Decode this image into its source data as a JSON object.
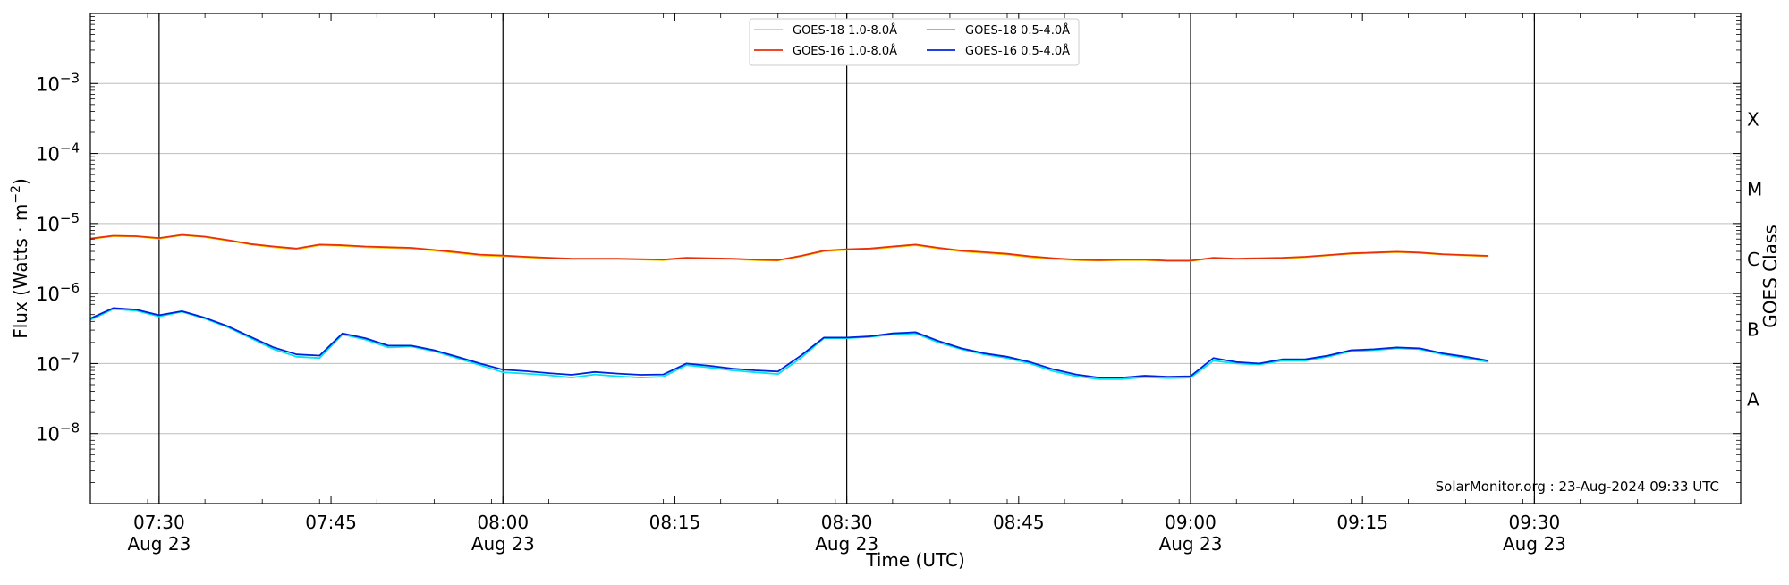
{
  "chart_data": {
    "type": "line",
    "xlabel": "Time (UTC)",
    "ylabel": "Flux (Watts · m",
    "ylabel_exponent": "−2",
    "ylabel_close": ")",
    "right_axis_label": "GOES Class",
    "y_scale": "log",
    "ylim": [
      1e-09,
      0.01
    ],
    "xlim": [
      "07:24",
      "09:48"
    ],
    "grid": "horizontal",
    "legend_position": "top-center",
    "y_ticks": [
      {
        "value": 1e-08,
        "base": "10",
        "exp": "−8"
      },
      {
        "value": 1e-07,
        "base": "10",
        "exp": "−7"
      },
      {
        "value": 1e-06,
        "base": "10",
        "exp": "−6"
      },
      {
        "value": 1e-05,
        "base": "10",
        "exp": "−5"
      },
      {
        "value": 0.0001,
        "base": "10",
        "exp": "−4"
      },
      {
        "value": 0.001,
        "base": "10",
        "exp": "−3"
      }
    ],
    "x_ticks": [
      {
        "time": "07:30",
        "label": "07:30",
        "sub": "Aug 23"
      },
      {
        "time": "07:45",
        "label": "07:45",
        "sub": ""
      },
      {
        "time": "08:00",
        "label": "08:00",
        "sub": "Aug 23"
      },
      {
        "time": "08:15",
        "label": "08:15",
        "sub": ""
      },
      {
        "time": "08:30",
        "label": "08:30",
        "sub": "Aug 23"
      },
      {
        "time": "08:45",
        "label": "08:45",
        "sub": ""
      },
      {
        "time": "09:00",
        "label": "09:00",
        "sub": "Aug 23"
      },
      {
        "time": "09:15",
        "label": "09:15",
        "sub": ""
      },
      {
        "time": "09:30",
        "label": "09:30",
        "sub": "Aug 23"
      }
    ],
    "vertical_markers": [
      "07:30",
      "08:00",
      "08:30",
      "09:00",
      "09:30"
    ],
    "goes_classes": [
      {
        "label": "A",
        "value": 3.16e-08
      },
      {
        "label": "B",
        "value": 3.16e-07
      },
      {
        "label": "C",
        "value": 3.16e-06
      },
      {
        "label": "M",
        "value": 3.16e-05
      },
      {
        "label": "X",
        "value": 0.000316
      }
    ],
    "annotation": "SolarMonitor.org : 23-Aug-2024 09:33 UTC",
    "legend": [
      {
        "name": "GOES-18 1.0-8.0Å",
        "color": "#ffd700"
      },
      {
        "name": "GOES-16 1.0-8.0Å",
        "color": "#e8300a"
      },
      {
        "name": "GOES-18 0.5-4.0Å",
        "color": "#00e5ee"
      },
      {
        "name": "GOES-16 0.5-4.0Å",
        "color": "#0022dd"
      }
    ],
    "series": [
      {
        "name": "GOES-18 1.0-8.0Å",
        "color": "#ffd700",
        "x": [
          "07:24",
          "07:26",
          "07:28",
          "07:30",
          "07:32",
          "07:34",
          "07:36",
          "07:38",
          "07:40",
          "07:42",
          "07:44",
          "07:46",
          "07:48",
          "07:50",
          "07:52",
          "07:54",
          "07:56",
          "07:58",
          "08:00",
          "08:02",
          "08:04",
          "08:06",
          "08:08",
          "08:10",
          "08:12",
          "08:14",
          "08:16",
          "08:18",
          "08:20",
          "08:22",
          "08:24",
          "08:26",
          "08:28",
          "08:30",
          "08:32",
          "08:34",
          "08:36",
          "08:38",
          "08:40",
          "08:42",
          "08:44",
          "08:46",
          "08:48",
          "08:50",
          "08:52",
          "08:54",
          "08:56",
          "08:58",
          "09:00",
          "09:02",
          "09:04",
          "09:06",
          "09:08",
          "09:10",
          "09:12",
          "09:14",
          "09:16",
          "09:18",
          "09:20",
          "09:22",
          "09:24",
          "09:26"
        ],
        "y": [
          6e-06,
          6.6e-06,
          6.5e-06,
          6.1e-06,
          6.8e-06,
          6.4e-06,
          5.7e-06,
          5e-06,
          4.6e-06,
          4.3e-06,
          4.9e-06,
          4.8e-06,
          4.6e-06,
          4.5e-06,
          4.4e-06,
          4.1e-06,
          3.8e-06,
          3.5e-06,
          3.4e-06,
          3.3e-06,
          3.2e-06,
          3.1e-06,
          3.1e-06,
          3.1e-06,
          3.05e-06,
          3e-06,
          3.2e-06,
          3.15e-06,
          3.1e-06,
          3e-06,
          2.95e-06,
          3.4e-06,
          4e-06,
          4.2e-06,
          4.3e-06,
          4.6e-06,
          4.9e-06,
          4.4e-06,
          4e-06,
          3.8e-06,
          3.6e-06,
          3.3e-06,
          3.1e-06,
          3e-06,
          2.95e-06,
          3e-06,
          3e-06,
          2.9e-06,
          2.9e-06,
          3.2e-06,
          3.1e-06,
          3.15e-06,
          3.2e-06,
          3.3e-06,
          3.5e-06,
          3.7e-06,
          3.8e-06,
          3.9e-06,
          3.8e-06,
          3.6e-06,
          3.5e-06,
          3.4e-06
        ]
      },
      {
        "name": "GOES-16 1.0-8.0Å",
        "color": "#e8300a",
        "x": [
          "07:24",
          "07:26",
          "07:28",
          "07:30",
          "07:32",
          "07:34",
          "07:36",
          "07:38",
          "07:40",
          "07:42",
          "07:44",
          "07:46",
          "07:48",
          "07:50",
          "07:52",
          "07:54",
          "07:56",
          "07:58",
          "08:00",
          "08:02",
          "08:04",
          "08:06",
          "08:08",
          "08:10",
          "08:12",
          "08:14",
          "08:16",
          "08:18",
          "08:20",
          "08:22",
          "08:24",
          "08:26",
          "08:28",
          "08:30",
          "08:32",
          "08:34",
          "08:36",
          "08:38",
          "08:40",
          "08:42",
          "08:44",
          "08:46",
          "08:48",
          "08:50",
          "08:52",
          "08:54",
          "08:56",
          "08:58",
          "09:00",
          "09:02",
          "09:04",
          "09:06",
          "09:08",
          "09:10",
          "09:12",
          "09:14",
          "09:16",
          "09:18",
          "09:20",
          "09:22",
          "09:24",
          "09:26"
        ],
        "y": [
          6.1e-06,
          6.7e-06,
          6.6e-06,
          6.2e-06,
          6.9e-06,
          6.5e-06,
          5.8e-06,
          5.1e-06,
          4.7e-06,
          4.4e-06,
          5e-06,
          4.9e-06,
          4.7e-06,
          4.6e-06,
          4.5e-06,
          4.2e-06,
          3.9e-06,
          3.6e-06,
          3.5e-06,
          3.35e-06,
          3.25e-06,
          3.15e-06,
          3.15e-06,
          3.15e-06,
          3.1e-06,
          3.05e-06,
          3.25e-06,
          3.2e-06,
          3.15e-06,
          3.05e-06,
          3e-06,
          3.45e-06,
          4.1e-06,
          4.3e-06,
          4.4e-06,
          4.7e-06,
          5e-06,
          4.5e-06,
          4.1e-06,
          3.9e-06,
          3.7e-06,
          3.4e-06,
          3.2e-06,
          3.05e-06,
          3e-06,
          3.05e-06,
          3.05e-06,
          2.95e-06,
          2.95e-06,
          3.25e-06,
          3.15e-06,
          3.2e-06,
          3.25e-06,
          3.35e-06,
          3.55e-06,
          3.75e-06,
          3.85e-06,
          3.95e-06,
          3.85e-06,
          3.65e-06,
          3.55e-06,
          3.45e-06
        ]
      },
      {
        "name": "GOES-18 0.5-4.0Å",
        "color": "#00e5ee",
        "x": [
          "07:24",
          "07:26",
          "07:28",
          "07:30",
          "07:32",
          "07:34",
          "07:36",
          "07:38",
          "07:40",
          "07:42",
          "07:44",
          "07:46",
          "07:48",
          "07:50",
          "07:52",
          "07:54",
          "07:56",
          "07:58",
          "08:00",
          "08:02",
          "08:04",
          "08:06",
          "08:08",
          "08:10",
          "08:12",
          "08:14",
          "08:16",
          "08:18",
          "08:20",
          "08:22",
          "08:24",
          "08:26",
          "08:28",
          "08:30",
          "08:32",
          "08:34",
          "08:36",
          "08:38",
          "08:40",
          "08:42",
          "08:44",
          "08:46",
          "08:48",
          "08:50",
          "08:52",
          "08:54",
          "08:56",
          "08:58",
          "09:00",
          "09:02",
          "09:04",
          "09:06",
          "09:08",
          "09:10",
          "09:12",
          "09:14",
          "09:16",
          "09:18",
          "09:20",
          "09:22",
          "09:24",
          "09:26"
        ],
        "y": [
          4.2e-07,
          6e-07,
          5.7e-07,
          4.7e-07,
          5.5e-07,
          4.4e-07,
          3.3e-07,
          2.3e-07,
          1.6e-07,
          1.25e-07,
          1.2e-07,
          2.6e-07,
          2.2e-07,
          1.7e-07,
          1.75e-07,
          1.5e-07,
          1.2e-07,
          9.5e-08,
          7.5e-08,
          7.2e-08,
          6.8e-08,
          6.3e-08,
          7e-08,
          6.6e-08,
          6.3e-08,
          6.5e-08,
          9.5e-08,
          8.8e-08,
          8e-08,
          7.5e-08,
          7.1e-08,
          1.2e-07,
          2.3e-07,
          2.3e-07,
          2.4e-07,
          2.6e-07,
          2.7e-07,
          2e-07,
          1.6e-07,
          1.35e-07,
          1.2e-07,
          1e-07,
          7.8e-08,
          6.6e-08,
          6e-08,
          6e-08,
          6.4e-08,
          6.2e-08,
          6.3e-08,
          1.1e-07,
          1e-07,
          9.7e-08,
          1.1e-07,
          1.1e-07,
          1.25e-07,
          1.5e-07,
          1.55e-07,
          1.65e-07,
          1.6e-07,
          1.35e-07,
          1.2e-07,
          1.05e-07
        ]
      },
      {
        "name": "GOES-16 0.5-4.0Å",
        "color": "#0022dd",
        "x": [
          "07:24",
          "07:26",
          "07:28",
          "07:30",
          "07:32",
          "07:34",
          "07:36",
          "07:38",
          "07:40",
          "07:42",
          "07:44",
          "07:46",
          "07:48",
          "07:50",
          "07:52",
          "07:54",
          "07:56",
          "07:58",
          "08:00",
          "08:02",
          "08:04",
          "08:06",
          "08:08",
          "08:10",
          "08:12",
          "08:14",
          "08:16",
          "08:18",
          "08:20",
          "08:22",
          "08:24",
          "08:26",
          "08:28",
          "08:30",
          "08:32",
          "08:34",
          "08:36",
          "08:38",
          "08:40",
          "08:42",
          "08:44",
          "08:46",
          "08:48",
          "08:50",
          "08:52",
          "08:54",
          "08:56",
          "08:58",
          "09:00",
          "09:02",
          "09:04",
          "09:06",
          "09:08",
          "09:10",
          "09:12",
          "09:14",
          "09:16",
          "09:18",
          "09:20",
          "09:22",
          "09:24",
          "09:26"
        ],
        "y": [
          4.4e-07,
          6.2e-07,
          5.9e-07,
          4.9e-07,
          5.6e-07,
          4.5e-07,
          3.4e-07,
          2.4e-07,
          1.7e-07,
          1.35e-07,
          1.3e-07,
          2.7e-07,
          2.3e-07,
          1.8e-07,
          1.8e-07,
          1.55e-07,
          1.25e-07,
          1e-07,
          8.2e-08,
          7.8e-08,
          7.3e-08,
          6.9e-08,
          7.6e-08,
          7.2e-08,
          6.9e-08,
          7e-08,
          1e-07,
          9.3e-08,
          8.5e-08,
          8e-08,
          7.7e-08,
          1.3e-07,
          2.35e-07,
          2.35e-07,
          2.45e-07,
          2.7e-07,
          2.8e-07,
          2.1e-07,
          1.65e-07,
          1.4e-07,
          1.25e-07,
          1.05e-07,
          8.3e-08,
          7e-08,
          6.3e-08,
          6.3e-08,
          6.7e-08,
          6.5e-08,
          6.6e-08,
          1.2e-07,
          1.05e-07,
          1e-07,
          1.15e-07,
          1.15e-07,
          1.3e-07,
          1.55e-07,
          1.6e-07,
          1.7e-07,
          1.65e-07,
          1.4e-07,
          1.25e-07,
          1.1e-07
        ]
      }
    ]
  }
}
